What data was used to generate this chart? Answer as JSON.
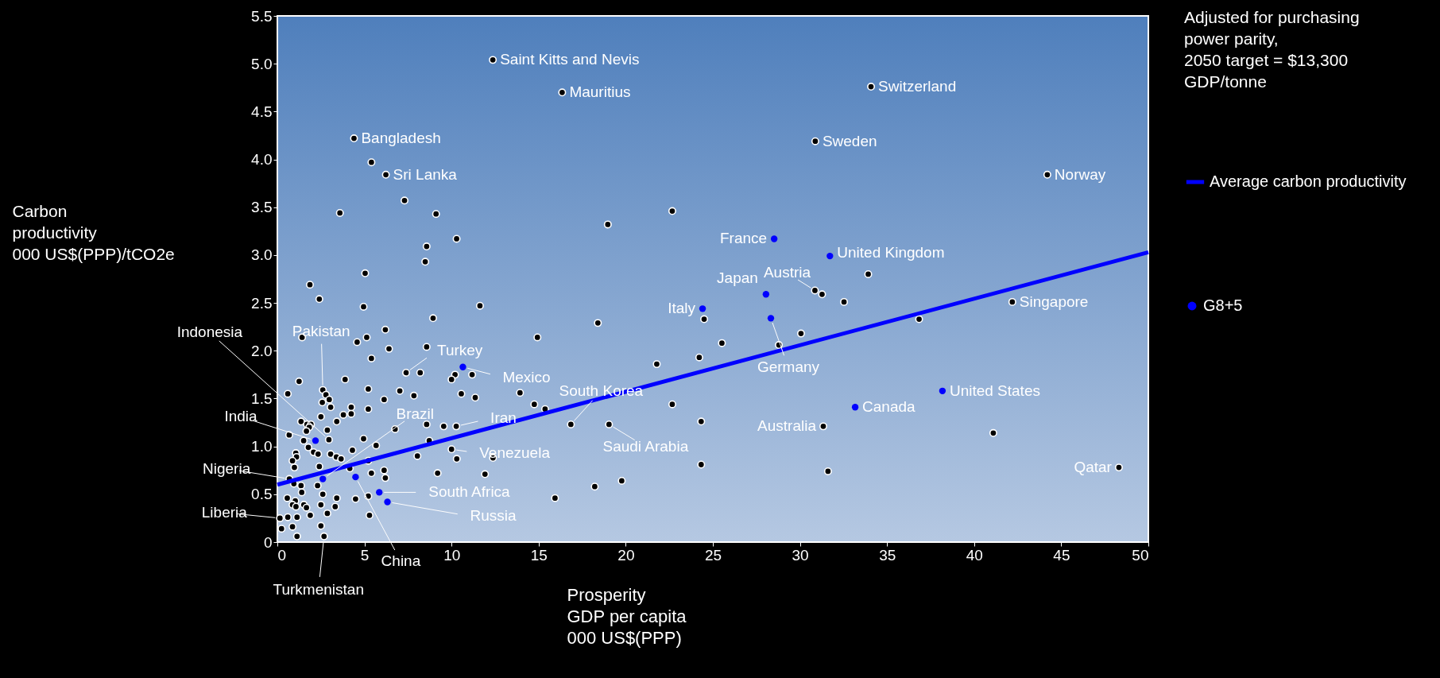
{
  "chart_data": {
    "type": "scatter",
    "xlabel": "Prosperity\nGDP per capita\n000 US$(PPP)",
    "ylabel": "Carbon\nproductivity\n000 US$(PPP)/tCO2e",
    "xlim": [
      0,
      50
    ],
    "xticks": [
      0,
      5,
      10,
      15,
      20,
      25,
      30,
      35,
      40,
      45,
      50
    ],
    "ylim": [
      0,
      5.5
    ],
    "yticks": [
      {
        "value": 0,
        "label": "0"
      },
      0.5,
      {
        "value": 1,
        "label": "1.0"
      },
      1.5,
      {
        "value": 2,
        "label": "2.0"
      },
      2.5,
      {
        "value": 3,
        "label": "3.0"
      },
      3.5,
      {
        "value": 4,
        "label": "4.0"
      },
      4.5,
      {
        "value": 5,
        "label": "5.0"
      },
      5.5
    ],
    "marker": "circle",
    "legend": "right",
    "series": [
      {
        "type": "scatter",
        "color": "#000000",
        "x": [
          1.42,
          0.6,
          1.25,
          0.68,
          1.36,
          1.7,
          1.93,
          1.83,
          1.67,
          1.51,
          1.78,
          2.08,
          2.34,
          1.06,
          1.1,
          0.87,
          0.98,
          0.69,
          0.95,
          1.36,
          1.4,
          0.57,
          1.03,
          0.87,
          1.07,
          1.52,
          1.67,
          1.89,
          0.15,
          0.6,
          1.13,
          0.24,
          0.87,
          1.13,
          2.96,
          2.68,
          7.39,
          8.94,
          4.58,
          5.13,
          6.2,
          6.41,
          8.57,
          5.4,
          3.89,
          8.2,
          10.2,
          10.0,
          11.18,
          2.61,
          2.79,
          2.98,
          2.58,
          3.06,
          5.22,
          5.22,
          7.03,
          7.84,
          6.13,
          10.56,
          11.36,
          4.24,
          4.24,
          3.79,
          3.41,
          2.5,
          2.87,
          8.57,
          9.55,
          10.27,
          4.95,
          5.67,
          4.31,
          3.06,
          3.39,
          3.66,
          2.41,
          8.04,
          8.72,
          10.0,
          10.3,
          4.16,
          5.4,
          6.13,
          6.2,
          5.22,
          9.2,
          2.31,
          2.61,
          2.5,
          3.41,
          3.32,
          2.87,
          2.5,
          4.49,
          5.22,
          5.29,
          6.76,
          12.37,
          16.35,
          4.4,
          5.4,
          6.23,
          7.3,
          3.59,
          9.11,
          18.97,
          10.29,
          8.57,
          8.49,
          5.04,
          1.87,
          2.41,
          4.95,
          11.63,
          34.08,
          30.88,
          44.2,
          22.67,
          33.92,
          30.86,
          31.27,
          32.53,
          42.19,
          24.5,
          18.4,
          14.93,
          28.79,
          30.06,
          25.52,
          24.22,
          21.78,
          13.93,
          14.75,
          15.37,
          22.67,
          16.85,
          19.04,
          24.33,
          31.34,
          12.38,
          11.92,
          15.94,
          18.22,
          19.77,
          24.33,
          31.61,
          36.84,
          41.1,
          48.31
        ],
        "values": [
          2.14,
          1.55,
          1.68,
          1.12,
          1.26,
          1.23,
          1.23,
          1.2,
          1.16,
          1.06,
          0.99,
          0.94,
          0.92,
          0.93,
          0.89,
          0.85,
          0.78,
          0.66,
          0.61,
          0.59,
          0.52,
          0.46,
          0.43,
          0.39,
          0.37,
          0.39,
          0.36,
          0.28,
          0.25,
          0.26,
          0.26,
          0.14,
          0.16,
          0.06,
          1.07,
          0.06,
          1.77,
          2.34,
          2.09,
          2.14,
          2.22,
          2.02,
          2.04,
          1.92,
          1.7,
          1.77,
          1.75,
          1.7,
          1.75,
          1.59,
          1.54,
          1.49,
          1.46,
          1.41,
          1.6,
          1.39,
          1.58,
          1.53,
          1.49,
          1.55,
          1.51,
          1.41,
          1.34,
          1.33,
          1.26,
          1.31,
          1.17,
          1.23,
          1.21,
          1.21,
          1.08,
          1.01,
          0.96,
          0.92,
          0.89,
          0.87,
          0.79,
          0.9,
          1.06,
          0.97,
          0.87,
          0.77,
          0.72,
          0.75,
          0.67,
          0.85,
          0.72,
          0.59,
          0.5,
          0.39,
          0.46,
          0.37,
          0.3,
          0.17,
          0.45,
          0.48,
          0.28,
          1.18,
          5.04,
          4.7,
          4.22,
          3.97,
          3.84,
          3.57,
          3.44,
          3.43,
          3.32,
          3.17,
          3.09,
          2.93,
          2.81,
          2.69,
          2.54,
          2.46,
          2.47,
          4.76,
          4.19,
          3.84,
          3.46,
          2.8,
          2.63,
          2.59,
          2.51,
          2.51,
          2.33,
          2.29,
          2.14,
          2.06,
          2.18,
          2.08,
          1.93,
          1.86,
          1.56,
          1.44,
          1.39,
          1.44,
          1.23,
          1.23,
          1.26,
          1.21,
          0.88,
          0.71,
          0.46,
          0.58,
          0.64,
          0.81,
          0.74,
          2.33,
          1.14,
          0.78
        ]
      },
      {
        "type": "scatter",
        "name": "G8+5",
        "color": "#0000ff",
        "x": [
          28.52,
          31.72,
          28.05,
          24.41,
          28.33,
          10.65,
          2.19,
          2.61,
          4.49,
          5.85,
          6.32,
          33.17,
          38.18
        ],
        "values": [
          3.17,
          2.99,
          2.59,
          2.44,
          2.34,
          1.83,
          1.06,
          0.66,
          0.68,
          0.52,
          0.42,
          1.41,
          1.58
        ]
      },
      {
        "type": "line",
        "name": "Average carbon productivity",
        "color": "#0000ff",
        "marker": "none",
        "x": [
          0,
          50
        ],
        "values": [
          0.6,
          3.03
        ]
      }
    ],
    "annotations": [
      {
        "text": "Saint Kitts and Nevis",
        "x": 12.37,
        "y": 5.04
      },
      {
        "text": "Mauritius",
        "x": 16.35,
        "y": 4.7
      },
      {
        "text": "Switzerland",
        "x": 34.08,
        "y": 4.76
      },
      {
        "text": "Sweden",
        "x": 30.88,
        "y": 4.19
      },
      {
        "text": "Bangladesh",
        "x": 4.4,
        "y": 4.22
      },
      {
        "text": "Sri Lanka",
        "x": 6.23,
        "y": 3.84
      },
      {
        "text": "Norway",
        "x": 44.2,
        "y": 3.84
      },
      {
        "text": "France",
        "x": 28.52,
        "y": 3.17
      },
      {
        "text": "United Kingdom",
        "x": 31.72,
        "y": 2.99
      },
      {
        "text": "Japan",
        "x": 28.05,
        "y": 2.59
      },
      {
        "text": "Austria",
        "x": 30.86,
        "y": 2.63
      },
      {
        "text": "Italy",
        "x": 24.41,
        "y": 2.44
      },
      {
        "text": "Singapore",
        "x": 42.19,
        "y": 2.51
      },
      {
        "text": "Germany",
        "x": 28.33,
        "y": 2.34
      },
      {
        "text": "Pakistan",
        "x": 2.61,
        "y": 1.59
      },
      {
        "text": "Turkey",
        "x": 7.39,
        "y": 1.77
      },
      {
        "text": "Mexico",
        "x": 10.65,
        "y": 1.83
      },
      {
        "text": "Indonesia",
        "x": 2.96,
        "y": 1.07
      },
      {
        "text": "India",
        "x": 2.19,
        "y": 1.06
      },
      {
        "text": "Nigeria",
        "x": 0.69,
        "y": 0.66
      },
      {
        "text": "Liberia",
        "x": 0.15,
        "y": 0.25
      },
      {
        "text": "Turkmenistan",
        "x": 2.68,
        "y": 0.06
      },
      {
        "text": "China",
        "x": 4.49,
        "y": 0.68
      },
      {
        "text": "South Africa",
        "x": 5.85,
        "y": 0.52
      },
      {
        "text": "Russia",
        "x": 6.32,
        "y": 0.42
      },
      {
        "text": "Brazil",
        "x": 2.61,
        "y": 0.66
      },
      {
        "text": "Iran",
        "x": 10.27,
        "y": 1.21
      },
      {
        "text": "South Korea",
        "x": 16.85,
        "y": 1.23
      },
      {
        "text": "Venezuela",
        "x": 10.0,
        "y": 0.97
      },
      {
        "text": "Saudi Arabia",
        "x": 19.04,
        "y": 1.23
      },
      {
        "text": "Australia",
        "x": 31.34,
        "y": 1.21
      },
      {
        "text": "Canada",
        "x": 33.17,
        "y": 1.41
      },
      {
        "text": "United States",
        "x": 38.18,
        "y": 1.58
      },
      {
        "text": "Qatar",
        "x": 48.31,
        "y": 0.78
      },
      "Adjusted for purchasing\npower parity,\n2050 target = $13,300\nGDP/tonne"
    ]
  }
}
